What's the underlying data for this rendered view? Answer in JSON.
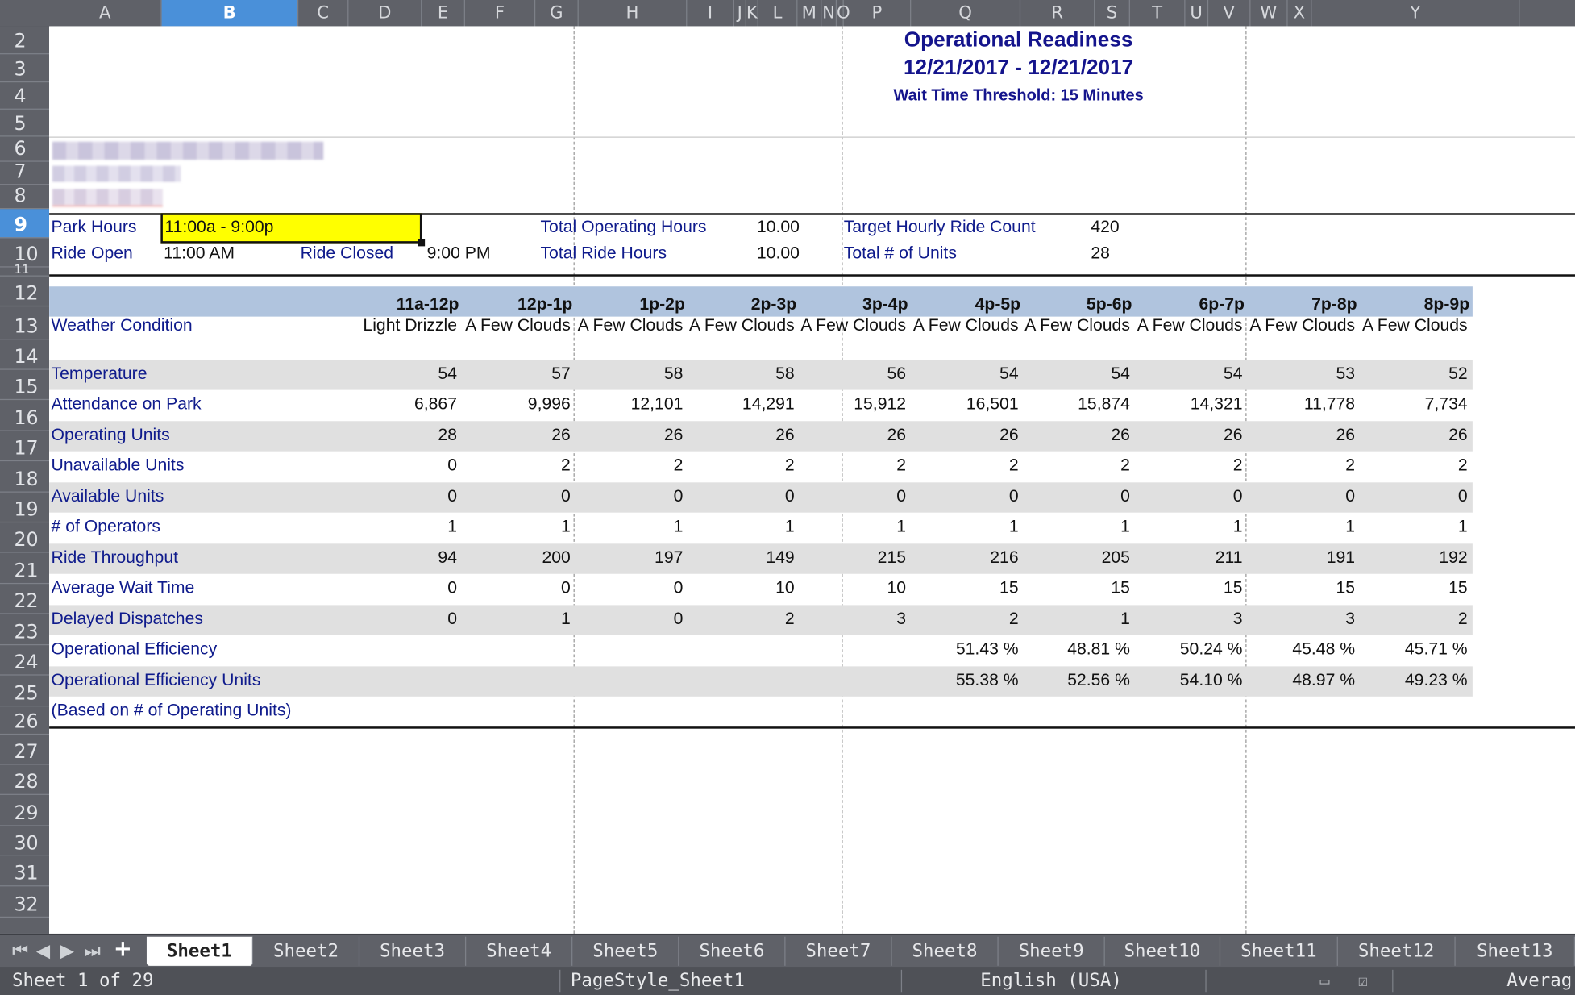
{
  "columns": [
    "A",
    "B",
    "C",
    "D",
    "E",
    "F",
    "G",
    "H",
    "I",
    "J",
    "K",
    "L",
    "M",
    "N",
    "O",
    "P",
    "Q",
    "R",
    "S",
    "T",
    "U",
    "V",
    "W",
    "X",
    "Y"
  ],
  "rows": [
    "2",
    "3",
    "4",
    "5",
    "6",
    "7",
    "8",
    "9",
    "10",
    "11",
    "12",
    "13",
    "14",
    "15",
    "16",
    "17",
    "18",
    "19",
    "20",
    "21",
    "22",
    "23",
    "24",
    "25",
    "26",
    "27",
    "28",
    "29",
    "30",
    "31",
    "32"
  ],
  "report": {
    "title": "Operational Readiness",
    "date_range": "12/21/2017 - 12/21/2017",
    "threshold": "Wait Time Threshold: 15 Minutes"
  },
  "info": {
    "park_hours_label": "Park Hours",
    "park_hours_value": "11:00a - 9:00p",
    "ride_open_label": "Ride Open",
    "ride_open_value": "11:00 AM",
    "ride_closed_label": "Ride Closed",
    "ride_closed_value": "9:00 PM",
    "total_operating_hours_label": "Total Operating Hours",
    "total_operating_hours_value": "10.00",
    "total_ride_hours_label": "Total Ride Hours",
    "total_ride_hours_value": "10.00",
    "target_hourly_label": "Target Hourly Ride Count",
    "target_hourly_value": "420",
    "total_units_label": "Total # of Units",
    "total_units_value": "28"
  },
  "table": {
    "hours": [
      "11a-12p",
      "12p-1p",
      "1p-2p",
      "2p-3p",
      "3p-4p",
      "4p-5p",
      "5p-6p",
      "6p-7p",
      "7p-8p",
      "8p-9p"
    ],
    "rows": [
      {
        "label": "Weather Condition",
        "values": [
          "Light Drizzle",
          "A Few Clouds",
          "A Few Clouds",
          "A Few Clouds",
          "A Few Clouds",
          "A Few Clouds",
          "A Few Clouds",
          "A Few Clouds",
          "A Few Clouds",
          "A Few Clouds"
        ]
      },
      {
        "label": "Temperature",
        "values": [
          "54",
          "57",
          "58",
          "58",
          "56",
          "54",
          "54",
          "54",
          "53",
          "52"
        ]
      },
      {
        "label": "Attendance on Park",
        "values": [
          "6,867",
          "9,996",
          "12,101",
          "14,291",
          "15,912",
          "16,501",
          "15,874",
          "14,321",
          "11,778",
          "7,734"
        ]
      },
      {
        "label": "Operating Units",
        "values": [
          "28",
          "26",
          "26",
          "26",
          "26",
          "26",
          "26",
          "26",
          "26",
          "26"
        ]
      },
      {
        "label": "Unavailable Units",
        "values": [
          "0",
          "2",
          "2",
          "2",
          "2",
          "2",
          "2",
          "2",
          "2",
          "2"
        ]
      },
      {
        "label": "Available Units",
        "values": [
          "0",
          "0",
          "0",
          "0",
          "0",
          "0",
          "0",
          "0",
          "0",
          "0"
        ]
      },
      {
        "label": "# of Operators",
        "values": [
          "1",
          "1",
          "1",
          "1",
          "1",
          "1",
          "1",
          "1",
          "1",
          "1"
        ]
      },
      {
        "label": "Ride Throughput",
        "values": [
          "94",
          "200",
          "197",
          "149",
          "215",
          "216",
          "205",
          "211",
          "191",
          "192"
        ]
      },
      {
        "label": "Average Wait Time",
        "values": [
          "0",
          "0",
          "0",
          "10",
          "10",
          "15",
          "15",
          "15",
          "15",
          "15"
        ]
      },
      {
        "label": "Delayed Dispatches",
        "values": [
          "0",
          "1",
          "0",
          "2",
          "3",
          "2",
          "1",
          "3",
          "3",
          "2"
        ]
      },
      {
        "label": "Operational Efficiency",
        "values": [
          "",
          "",
          "",
          "",
          "",
          "51.43 %",
          "48.81 %",
          "50.24 %",
          "45.48 %",
          "45.71 %"
        ]
      },
      {
        "label": "Operational Efficiency Units",
        "values": [
          "",
          "",
          "",
          "",
          "",
          "55.38 %",
          "52.56 %",
          "54.10 %",
          "48.97 %",
          "49.23 %"
        ]
      },
      {
        "label": "(Based on # of Operating Units)",
        "values": [
          "",
          "",
          "",
          "",
          "",
          "",
          "",
          "",
          "",
          ""
        ]
      }
    ]
  },
  "sheet_tabs": [
    "Sheet1",
    "Sheet2",
    "Sheet3",
    "Sheet4",
    "Sheet5",
    "Sheet6",
    "Sheet7",
    "Sheet8",
    "Sheet9",
    "Sheet10",
    "Sheet11",
    "Sheet12",
    "Sheet13"
  ],
  "status": {
    "sheet_info": "Sheet 1 of 29",
    "page_style": "PageStyle_Sheet1",
    "language": "English (USA)",
    "aggregate": "Averag"
  },
  "colors": {
    "accent": "#4a90d9",
    "label_blue": "#0f1b8c",
    "header_band": "#b0c4de",
    "stripe": "#e0e0e0",
    "highlight": "#ffff00"
  }
}
